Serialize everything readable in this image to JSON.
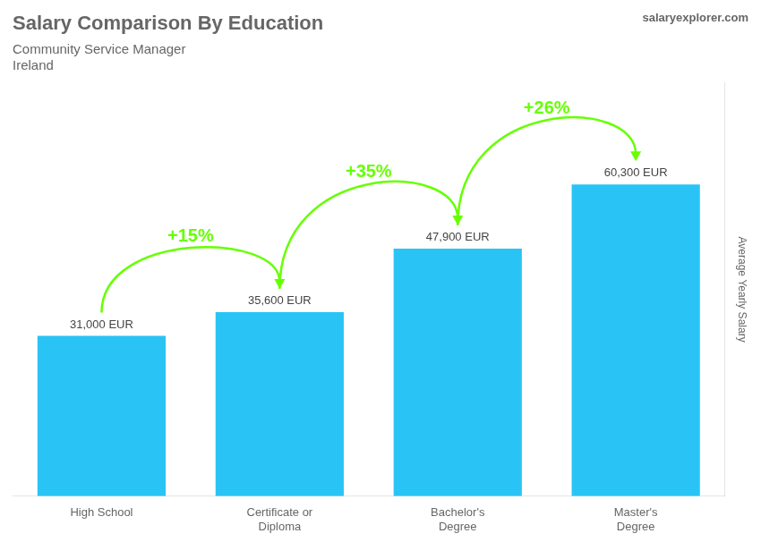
{
  "chart_data": {
    "type": "bar",
    "title": "Salary Comparison By Education",
    "subtitle": [
      "Community Service Manager",
      "Ireland"
    ],
    "watermark": "salaryexplorer.com",
    "ylabel": "Average Yearly Salary",
    "categories": [
      "High School",
      "Certificate or\nDiploma",
      "Bachelor's\nDegree",
      "Master's\nDegree"
    ],
    "values": [
      31000,
      35600,
      47900,
      60300
    ],
    "value_labels": [
      "31,000 EUR",
      "35,600 EUR",
      "47,900 EUR",
      "60,300 EUR"
    ],
    "data_labels": true,
    "annotations": [
      {
        "text": "+15%",
        "color": "#66ff00"
      },
      {
        "text": "+35%",
        "color": "#66ff00"
      },
      {
        "text": "+26%",
        "color": "#66ff00"
      }
    ],
    "color": "#29c4f5",
    "ylim": [
      0,
      80000
    ],
    "tick_labels": "x",
    "grid": false
  }
}
